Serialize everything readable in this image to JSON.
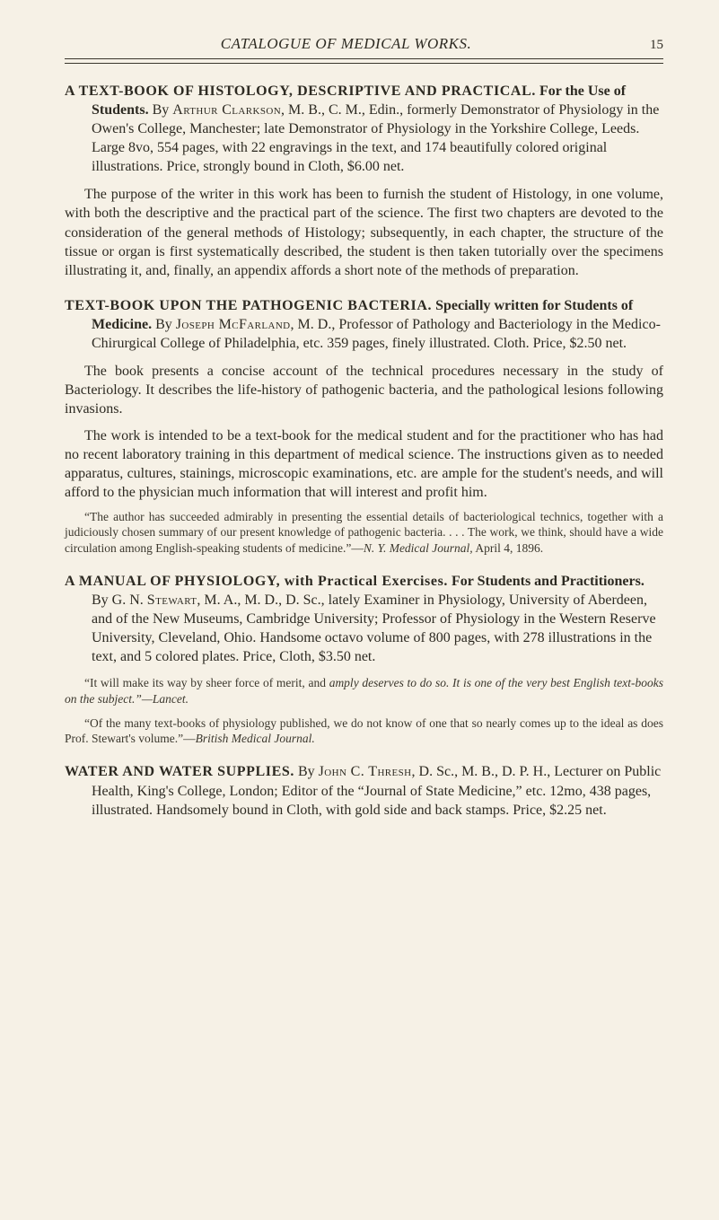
{
  "header": {
    "running_title": "CATALOGUE OF MEDICAL WORKS.",
    "page_number": "15"
  },
  "entries": [
    {
      "title": "A TEXT-BOOK OF HISTOLOGY, DESCRIPTIVE AND PRACTICAL.",
      "subtitle": " For the Use of Students.",
      "by_prefix": " By ",
      "author": "Arthur Clarkson",
      "after_author": ", M. B., C. M., Edin., formerly Demonstrator of Physiology in the Owen's College, Manchester; late Demonstrator of Physiology in the Yorkshire College, Leeds. Large 8vo, 554 pages, with 22 engravings in the text, and 174 beautifully colored original illustrations. Price, strongly bound in Cloth, $6.00 net.",
      "paragraphs": [
        "The purpose of the writer in this work has been to furnish the student of Histology, in one volume, with both the descriptive and the practical part of the science. The first two chapters are devoted to the consideration of the general methods of Histology; subsequently, in each chapter, the structure of the tissue or organ is first systematically described, the student is then taken tutorially over the specimens illustrating it, and, finally, an appendix affords a short note of the methods of preparation."
      ],
      "quotes": []
    },
    {
      "title": "TEXT-BOOK UPON THE PATHOGENIC BACTERIA.",
      "subtitle": " Specially written for Students of Medicine.",
      "by_prefix": " By ",
      "author": "Joseph McFarland",
      "after_author": ", M. D., Professor of Pathology and Bacteriology in the Medico-Chirurgical College of Philadelphia, etc. 359 pages, finely illustrated. Cloth. Price, $2.50 net.",
      "paragraphs": [
        "The book presents a concise account of the technical procedures necessary in the study of Bacteriology. It describes the life-history of pathogenic bacteria, and the pathological lesions following invasions.",
        "The work is intended to be a text-book for the medical student and for the practitioner who has had no recent laboratory training in this department of medical science. The instructions given as to needed apparatus, cultures, stainings, microscopic examinations, etc. are ample for the student's needs, and will afford to the physician much information that will interest and profit him."
      ],
      "quotes": [
        {
          "text": "“The author has succeeded admirably in presenting the essential details of bacteriological technics, together with a judiciously chosen summary of our present knowledge of pathogenic bacteria. . . . The work, we think, should have a wide circulation among English-speaking students of medicine.”—",
          "source": "N. Y. Medical Journal,",
          "tail": " April 4, 1896."
        }
      ]
    },
    {
      "title": "A MANUAL OF PHYSIOLOGY, with Practical Exercises.",
      "subtitle": " For Students and Practitioners.",
      "by_prefix": " By G. N. ",
      "author": "Stewart",
      "after_author": ", M. A., M. D., D. Sc., lately Examiner in Physiology, University of Aberdeen, and of the New Museums, Cambridge University; Professor of Physiology in the Western Reserve University, Cleveland, Ohio. Handsome octavo volume of 800 pages, with 278 illustrations in the text, and 5 colored plates. Price, Cloth, $3.50 net.",
      "paragraphs": [],
      "quotes": [
        {
          "text": "“It will make its way by sheer force of merit, and ",
          "emph": "amply deserves to do so. It is one of the very best English text-books on the subject.”",
          "source": "—Lancet.",
          "tail": ""
        },
        {
          "text": "“Of the many text-books of physiology published, we do not know of one that so nearly comes up to the ideal as does Prof. Stewart's volume.”—",
          "source": "British Medical Journal.",
          "tail": ""
        }
      ]
    },
    {
      "title": "WATER AND WATER SUPPLIES.",
      "subtitle": "",
      "by_prefix": " By ",
      "author": "John C. Thresh",
      "after_author": ", D. Sc., M. B., D. P. H., Lecturer on Public Health, King's College, London; Editor of the “Journal of State Medicine,” etc. 12mo, 438 pages, illustrated. Handsomely bound in Cloth, with gold side and back stamps. Price, $2.25 net.",
      "paragraphs": [],
      "quotes": []
    }
  ]
}
